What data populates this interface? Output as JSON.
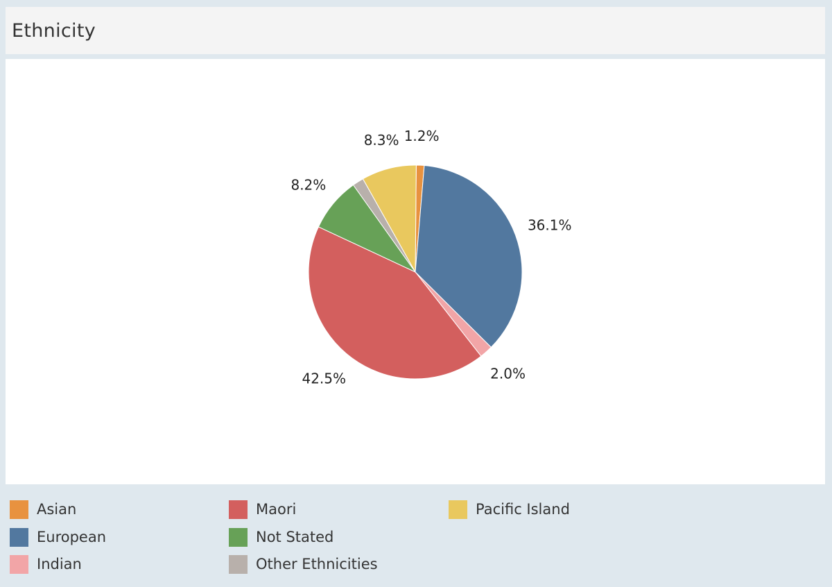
{
  "header": {
    "title": "Ethnicity"
  },
  "chart_data": {
    "type": "pie",
    "title": "Ethnicity",
    "slices": [
      {
        "name": "Asian",
        "value": 1.2,
        "label": "1.2%",
        "color": "#e8923f"
      },
      {
        "name": "European",
        "value": 36.1,
        "label": "36.1%",
        "color": "#52789f"
      },
      {
        "name": "Indian",
        "value": 2.0,
        "label": "2.0%",
        "color": "#f2a5a7"
      },
      {
        "name": "Maori",
        "value": 42.5,
        "label": "42.5%",
        "color": "#d35f5e"
      },
      {
        "name": "Not Stated",
        "value": 8.2,
        "label": "8.2%",
        "color": "#67a157"
      },
      {
        "name": "Other Ethnicities",
        "value": 1.7,
        "label": "",
        "color": "#b8b0ab"
      },
      {
        "name": "Pacific Island",
        "value": 8.3,
        "label": "8.3%",
        "color": "#e9c85e"
      }
    ],
    "legend_placement": "bottom"
  },
  "legend": {
    "items": [
      {
        "label": "Asian",
        "color": "#e8923f"
      },
      {
        "label": "European",
        "color": "#52789f"
      },
      {
        "label": "Indian",
        "color": "#f2a5a7"
      },
      {
        "label": "Maori",
        "color": "#d35f5e"
      },
      {
        "label": "Not Stated",
        "color": "#67a157"
      },
      {
        "label": "Other Ethnicities",
        "color": "#b8b0ab"
      },
      {
        "label": "Pacific Island",
        "color": "#e9c85e"
      }
    ]
  }
}
